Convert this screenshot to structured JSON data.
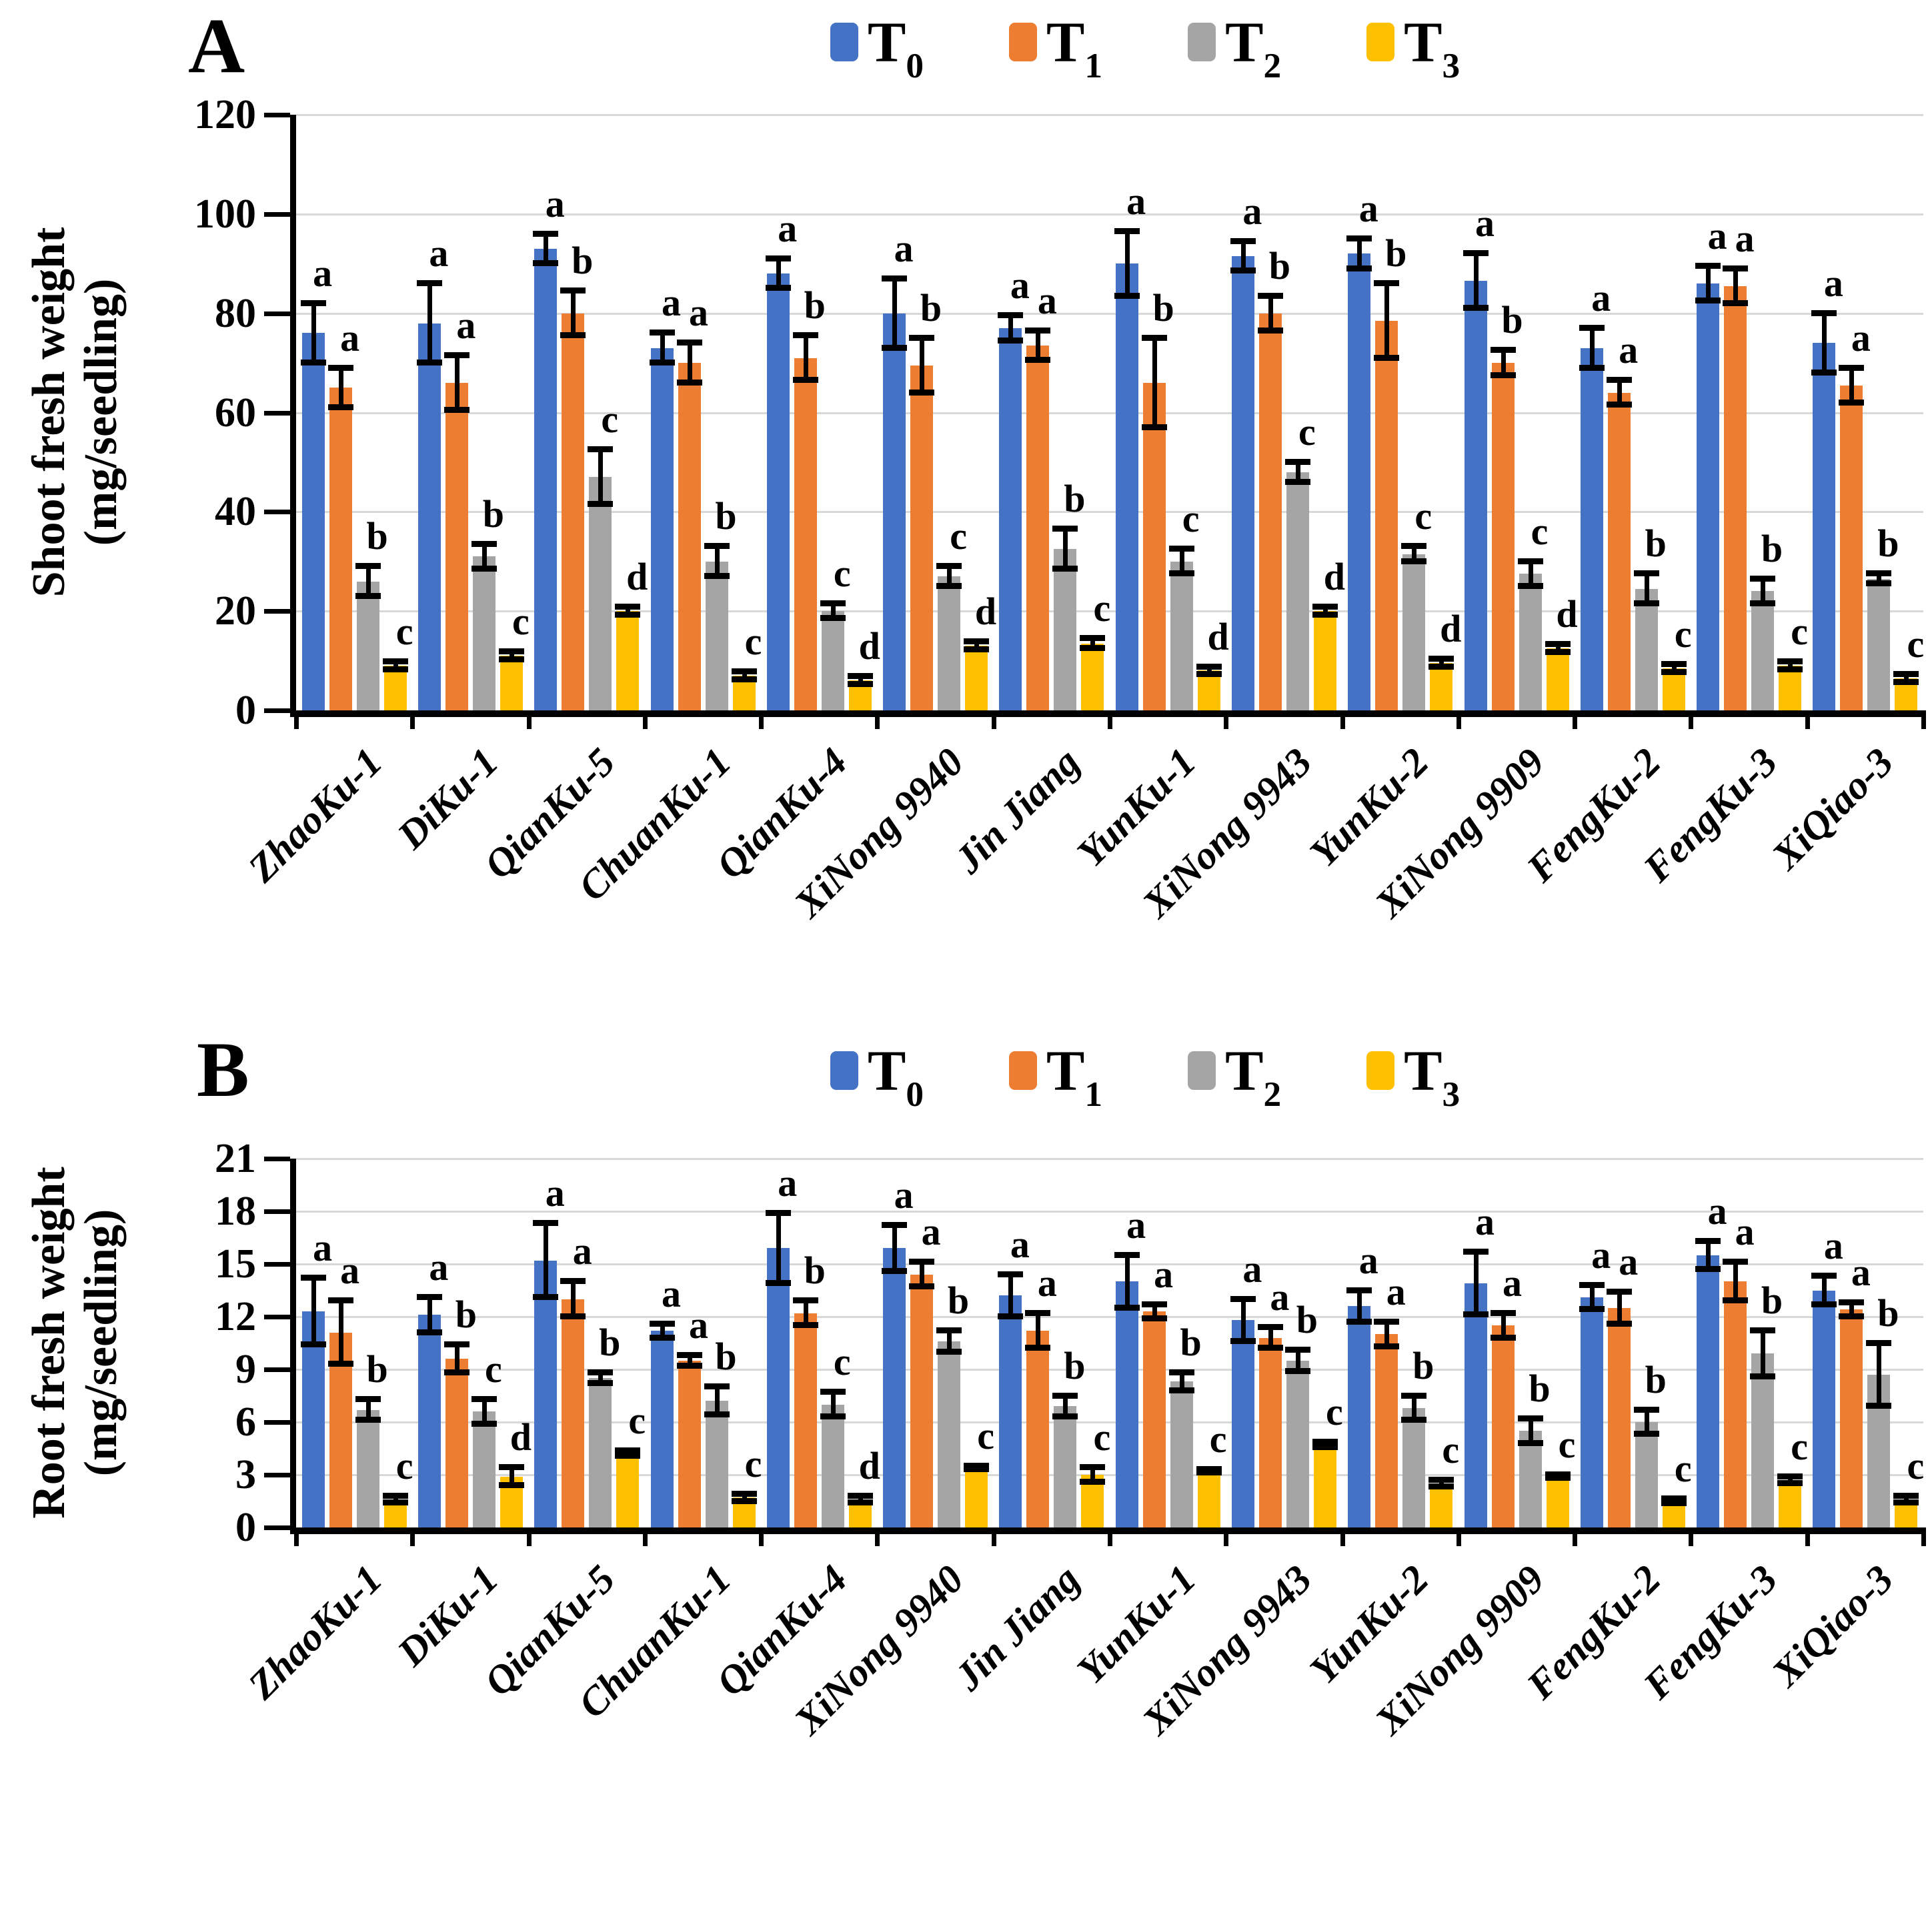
{
  "figure": {
    "background": "#ffffff"
  },
  "colors": {
    "t0": "#4472C4",
    "t1": "#ED7D31",
    "t2": "#A5A5A5",
    "t3": "#FFC000",
    "gridline": "#D8D8D8",
    "axis": "#000000"
  },
  "chart_data": [
    {
      "id": "A",
      "type": "bar",
      "panel_label": "A",
      "ylabel_lines": [
        "Shoot fresh weight",
        "(mg/seedling)"
      ],
      "ylim": [
        0,
        120
      ],
      "yticks": [
        0,
        20,
        40,
        60,
        80,
        100,
        120
      ],
      "grid": true,
      "legend_position": "top-center",
      "categories": [
        "ZhaoKu-1",
        "DiKu-1",
        "QianKu-5",
        "ChuanKu-1",
        "QianKu-4",
        "XiNong 9940",
        "Jin Jiang",
        "YunKu-1",
        "XiNong 9943",
        "YunKu-2",
        "XiNong 9909",
        "FengKu-2",
        "FengKu-3",
        "XiQiao-3"
      ],
      "series": [
        {
          "name": "T0",
          "legend_label": "T",
          "legend_sub": "0",
          "color": "#4472C4",
          "values": [
            76,
            78,
            93,
            73,
            88,
            80,
            77,
            90,
            91.5,
            92,
            86.5,
            73,
            86,
            74
          ],
          "errors": [
            6,
            8,
            3,
            3,
            3,
            7,
            2.5,
            6.5,
            3,
            3,
            5.5,
            4,
            3.5,
            6
          ],
          "letters": [
            "a",
            "a",
            "a",
            "a",
            "a",
            "a",
            "a",
            "a",
            "a",
            "a",
            "a",
            "a",
            "a",
            "a"
          ]
        },
        {
          "name": "T1",
          "legend_label": "T",
          "legend_sub": "1",
          "color": "#ED7D31",
          "values": [
            65,
            66,
            80,
            70,
            71,
            69.5,
            73.5,
            66,
            80,
            78.5,
            70,
            64,
            85.5,
            65.5
          ],
          "errors": [
            4,
            5.5,
            4.5,
            4,
            4.5,
            5.5,
            3,
            9,
            3.5,
            7.5,
            2.5,
            2.5,
            3.5,
            3.5
          ],
          "letters": [
            "a",
            "a",
            "b",
            "a",
            "b",
            "b",
            "a",
            "b",
            "b",
            "b",
            "b",
            "a",
            "a",
            "a"
          ]
        },
        {
          "name": "T2",
          "legend_label": "T",
          "legend_sub": "2",
          "color": "#A5A5A5",
          "values": [
            26,
            31,
            47,
            30,
            20,
            27,
            32.5,
            30,
            48,
            31.5,
            27.5,
            24.5,
            24,
            26.5
          ],
          "errors": [
            3,
            2.5,
            5.5,
            3,
            1.5,
            2,
            4,
            2.5,
            2,
            1.5,
            2.5,
            3,
            2.5,
            1
          ],
          "letters": [
            "b",
            "b",
            "c",
            "b",
            "c",
            "c",
            "b",
            "c",
            "c",
            "c",
            "c",
            "b",
            "b",
            "b"
          ]
        },
        {
          "name": "T3",
          "legend_label": "T",
          "legend_sub": "3",
          "color": "#FFC000",
          "values": [
            9,
            11,
            20,
            7,
            6,
            13,
            13.5,
            8,
            20,
            9.5,
            12.5,
            8.5,
            9,
            6.5
          ],
          "errors": [
            0.8,
            0.8,
            0.8,
            0.8,
            0.8,
            0.8,
            1,
            0.8,
            0.8,
            0.8,
            0.8,
            0.8,
            0.8,
            0.8
          ],
          "letters": [
            "c",
            "c",
            "d",
            "c",
            "d",
            "d",
            "c",
            "d",
            "d",
            "d",
            "d",
            "c",
            "c",
            "c"
          ]
        }
      ]
    },
    {
      "id": "B",
      "type": "bar",
      "panel_label": "B",
      "ylabel_lines": [
        "Root fresh weight",
        "(mg/seedling)"
      ],
      "ylim": [
        0,
        21
      ],
      "yticks": [
        0,
        3,
        6,
        9,
        12,
        15,
        18,
        21
      ],
      "grid": true,
      "legend_position": "top-center",
      "categories": [
        "ZhaoKu-1",
        "DiKu-1",
        "QianKu-5",
        "ChuanKu-1",
        "QianKu-4",
        "XiNong 9940",
        "Jin Jiang",
        "YunKu-1",
        "XiNong 9943",
        "YunKu-2",
        "XiNong 9909",
        "FengKu-2",
        "FengKu-3",
        "XiQiao-3"
      ],
      "series": [
        {
          "name": "T0",
          "legend_label": "T",
          "legend_sub": "0",
          "color": "#4472C4",
          "values": [
            12.3,
            12.1,
            15.2,
            11.2,
            15.9,
            15.9,
            13.2,
            14.0,
            11.8,
            12.6,
            13.9,
            13.1,
            15.5,
            13.5
          ],
          "errors": [
            1.9,
            1.0,
            2.1,
            0.4,
            2.0,
            1.3,
            1.2,
            1.5,
            1.2,
            0.9,
            1.8,
            0.7,
            0.8,
            0.8
          ],
          "letters": [
            "a",
            "a",
            "a",
            "a",
            "a",
            "a",
            "a",
            "a",
            "a",
            "a",
            "a",
            "a",
            "a",
            "a"
          ]
        },
        {
          "name": "T1",
          "legend_label": "T",
          "legend_sub": "1",
          "color": "#ED7D31",
          "values": [
            11.1,
            9.6,
            13.0,
            9.5,
            12.2,
            14.4,
            11.2,
            12.3,
            10.8,
            11.0,
            11.5,
            12.5,
            14.0,
            12.4
          ],
          "errors": [
            1.8,
            0.8,
            1.0,
            0.3,
            0.7,
            0.7,
            1.0,
            0.4,
            0.6,
            0.7,
            0.7,
            0.9,
            1.1,
            0.4
          ],
          "letters": [
            "a",
            "b",
            "a",
            "a",
            "b",
            "a",
            "a",
            "a",
            "a",
            "a",
            "a",
            "a",
            "a",
            "a"
          ]
        },
        {
          "name": "T2",
          "legend_label": "T",
          "legend_sub": "2",
          "color": "#A5A5A5",
          "values": [
            6.7,
            6.6,
            8.5,
            7.2,
            7.0,
            10.6,
            6.9,
            8.3,
            9.5,
            6.8,
            5.5,
            6.0,
            9.9,
            8.7
          ],
          "errors": [
            0.6,
            0.7,
            0.3,
            0.8,
            0.7,
            0.6,
            0.6,
            0.5,
            0.6,
            0.7,
            0.7,
            0.7,
            1.3,
            1.8
          ],
          "letters": [
            "b",
            "c",
            "b",
            "b",
            "c",
            "b",
            "b",
            "b",
            "b",
            "b",
            "b",
            "b",
            "b",
            "b"
          ]
        },
        {
          "name": "T3",
          "legend_label": "T",
          "legend_sub": "3",
          "color": "#FFC000",
          "values": [
            1.6,
            2.9,
            4.2,
            1.7,
            1.6,
            3.4,
            3.0,
            3.2,
            4.7,
            2.5,
            2.9,
            1.5,
            2.7,
            1.6
          ],
          "errors": [
            0.2,
            0.5,
            0.15,
            0.2,
            0.2,
            0.1,
            0.4,
            0.1,
            0.15,
            0.2,
            0.1,
            0.15,
            0.2,
            0.2
          ],
          "letters": [
            "c",
            "d",
            "c",
            "c",
            "d",
            "c",
            "c",
            "c",
            "c",
            "c",
            "c",
            "c",
            "c",
            "c"
          ]
        }
      ]
    }
  ]
}
